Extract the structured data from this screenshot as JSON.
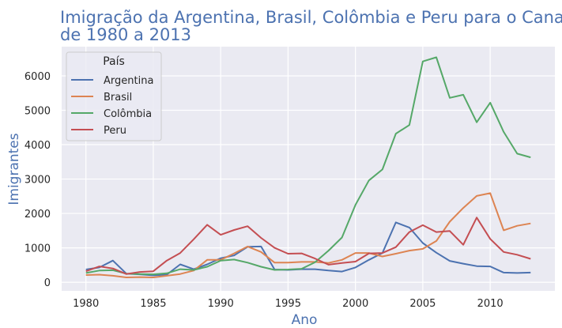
{
  "chart_data": {
    "type": "line",
    "title_line1": "Imigração da Argentina, Brasil, Colômbia e Peru para o Canadá",
    "title_line2": "de 1980 a 2013",
    "xlabel": "Ano",
    "ylabel": "Imigrantes",
    "xlim": [
      1978.2,
      2014.8
    ],
    "ylim": [
      -250,
      6850
    ],
    "x_ticks": [
      1980,
      1985,
      1990,
      1995,
      2000,
      2005,
      2010
    ],
    "y_ticks": [
      0,
      1000,
      2000,
      3000,
      4000,
      5000,
      6000
    ],
    "grid": true,
    "legend": {
      "title": "País",
      "placement": "top-left"
    },
    "x": [
      1980,
      1981,
      1982,
      1983,
      1984,
      1985,
      1986,
      1987,
      1988,
      1989,
      1990,
      1991,
      1992,
      1993,
      1994,
      1995,
      1996,
      1997,
      1998,
      1999,
      2000,
      2001,
      2002,
      2003,
      2004,
      2005,
      2006,
      2007,
      2008,
      2009,
      2010,
      2011,
      2012,
      2013
    ],
    "series": [
      {
        "name": "Argentina",
        "color": "#4c72b0",
        "values": [
          370,
          430,
          630,
          250,
          230,
          200,
          220,
          520,
          380,
          520,
          700,
          780,
          1030,
          1040,
          370,
          360,
          380,
          380,
          340,
          310,
          430,
          650,
          850,
          1740,
          1590,
          1140,
          860,
          620,
          540,
          470,
          460,
          280,
          270,
          280
        ]
      },
      {
        "name": "Brasil",
        "color": "#dd8452",
        "values": [
          210,
          220,
          190,
          140,
          150,
          140,
          190,
          240,
          340,
          650,
          650,
          840,
          1040,
          880,
          570,
          570,
          590,
          590,
          560,
          650,
          850,
          850,
          750,
          830,
          920,
          970,
          1200,
          1760,
          2160,
          2510,
          2590,
          1510,
          1640,
          1710
        ]
      },
      {
        "name": "Colômbia",
        "color": "#55a868",
        "values": [
          270,
          340,
          350,
          250,
          240,
          230,
          260,
          380,
          360,
          450,
          630,
          660,
          570,
          450,
          360,
          370,
          390,
          580,
          920,
          1300,
          2250,
          2960,
          3280,
          4320,
          4570,
          6420,
          6540,
          5360,
          5450,
          4650,
          5220,
          4370,
          3740,
          3630
        ]
      },
      {
        "name": "Peru",
        "color": "#c44e52",
        "values": [
          320,
          460,
          400,
          240,
          300,
          320,
          630,
          850,
          1250,
          1670,
          1380,
          1520,
          1630,
          1290,
          1000,
          830,
          840,
          690,
          510,
          560,
          600,
          840,
          850,
          1020,
          1460,
          1660,
          1460,
          1490,
          1090,
          1880,
          1260,
          880,
          800,
          680
        ]
      }
    ]
  }
}
